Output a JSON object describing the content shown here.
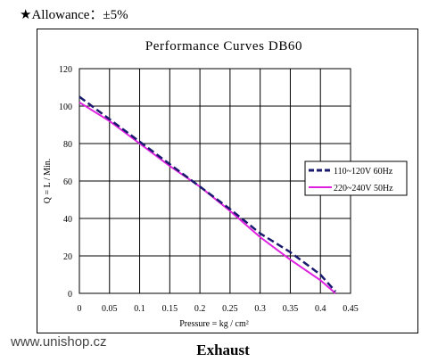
{
  "header_note": "★Allowance：±5%",
  "footer": {
    "site": "www.unishop.cz",
    "caption": "Exhaust"
  },
  "chart_data": {
    "type": "line",
    "title": "Performance  Curves  DB60",
    "xlabel": "Pressure = kg / cm²",
    "ylabel": "Q = L / Min.",
    "xlim": [
      0,
      0.45
    ],
    "ylim": [
      0,
      120
    ],
    "x_ticks": [
      "0",
      "0.05",
      "0.1",
      "0.15",
      "0.2",
      "0.25",
      "0.3",
      "0.35",
      "0.4",
      "0.45"
    ],
    "y_ticks": [
      "0",
      "20",
      "40",
      "60",
      "80",
      "100",
      "120"
    ],
    "grid": true,
    "legend_position": "right",
    "series": [
      {
        "name": "110~120V 60Hz",
        "color": "#1a1a6e",
        "dash": true,
        "points": [
          [
            0,
            105
          ],
          [
            0.05,
            93
          ],
          [
            0.1,
            81
          ],
          [
            0.15,
            69
          ],
          [
            0.2,
            57
          ],
          [
            0.25,
            45
          ],
          [
            0.3,
            32
          ],
          [
            0.35,
            22
          ],
          [
            0.4,
            10
          ],
          [
            0.425,
            1
          ]
        ]
      },
      {
        "name": "220~240V 50Hz",
        "color": "#e020e0",
        "dash": false,
        "points": [
          [
            0,
            102
          ],
          [
            0.05,
            92
          ],
          [
            0.1,
            80
          ],
          [
            0.15,
            68
          ],
          [
            0.2,
            57
          ],
          [
            0.25,
            44
          ],
          [
            0.3,
            30
          ],
          [
            0.35,
            18
          ],
          [
            0.4,
            7
          ],
          [
            0.425,
            0
          ]
        ]
      }
    ]
  }
}
